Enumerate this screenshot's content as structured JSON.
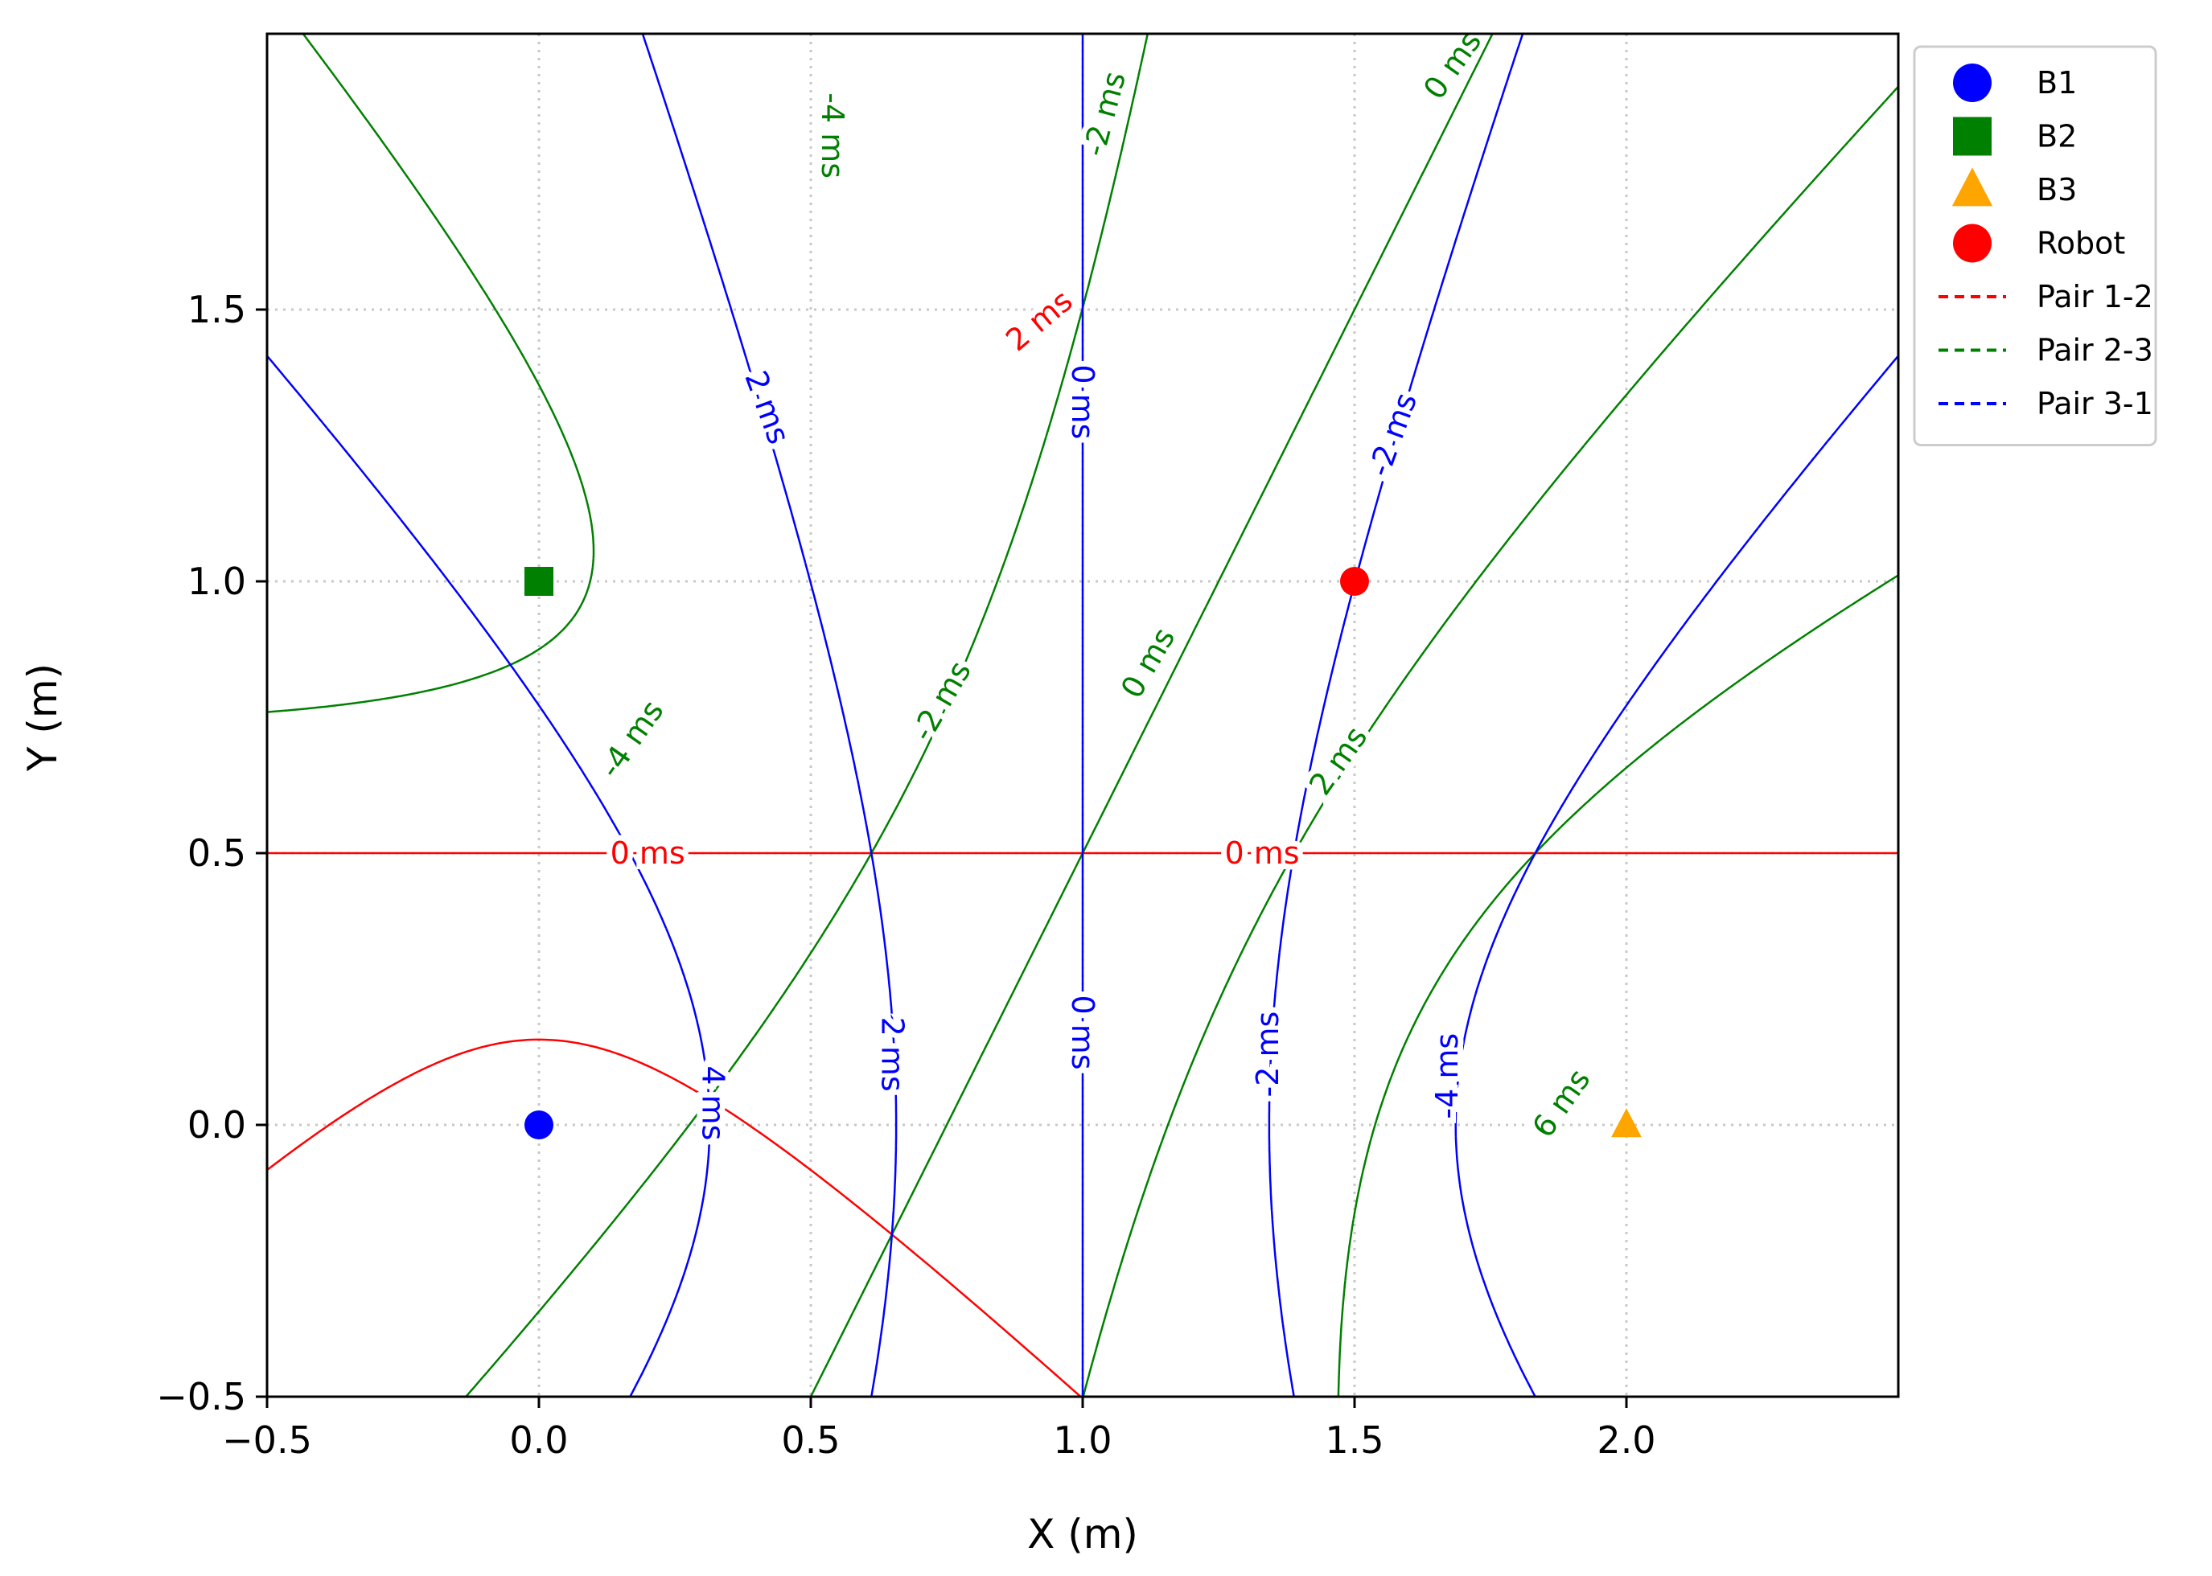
{
  "chart_data": {
    "type": "line",
    "title": "",
    "xlabel": "X (m)",
    "ylabel": "Y (m)",
    "xlim": [
      -0.5,
      2.5
    ],
    "ylim": [
      -0.5,
      2.0
    ],
    "xticks": [
      -0.5,
      0.0,
      0.5,
      1.0,
      1.5,
      2.0
    ],
    "xtick_labels": [
      "−0.5",
      "0.0",
      "0.5",
      "1.0",
      "1.5",
      "2.0"
    ],
    "yticks": [
      -0.5,
      0.0,
      0.5,
      1.0,
      1.5
    ],
    "ytick_labels": [
      "−0.5",
      "0.0",
      "0.5",
      "1.0",
      "1.5"
    ],
    "grid": true,
    "legend_position": "outside-top-right",
    "speed_m_per_ms": 0.343,
    "points": [
      {
        "name": "B1",
        "x": 0.0,
        "y": 0.0,
        "marker": "circle",
        "color": "#0000ff"
      },
      {
        "name": "B2",
        "x": 0.0,
        "y": 1.0,
        "marker": "square",
        "color": "#008000"
      },
      {
        "name": "B3",
        "x": 2.0,
        "y": 0.0,
        "marker": "triangle",
        "color": "#ffa500"
      },
      {
        "name": "Robot",
        "x": 1.5,
        "y": 1.0,
        "marker": "circle",
        "color": "#ff0000"
      }
    ],
    "series": [
      {
        "name": "Pair 1-2",
        "color": "#ff0000",
        "from": "B1",
        "to": "B2",
        "levels_ms": [
          0,
          2
        ],
        "labels": [
          "0 ms",
          "0 ms",
          "2 ms"
        ]
      },
      {
        "name": "Pair 2-3",
        "color": "#008000",
        "from": "B2",
        "to": "B3",
        "levels_ms": [
          -4,
          -2,
          0,
          2,
          6
        ],
        "labels": [
          "-4 ms",
          "-4 ms",
          "-2 ms",
          "-2 ms",
          "0 ms",
          "0 ms",
          "2 ms",
          "6 ms"
        ]
      },
      {
        "name": "Pair 3-1",
        "color": "#0000ff",
        "from": "B3",
        "to": "B1",
        "levels_ms": [
          -4,
          -2,
          0,
          2,
          4
        ],
        "labels": [
          "2 ms",
          "2 ms",
          "0 ms",
          "0 ms",
          "-2 ms",
          "-2 ms",
          "-4 ms",
          "4 ms"
        ]
      }
    ]
  }
}
